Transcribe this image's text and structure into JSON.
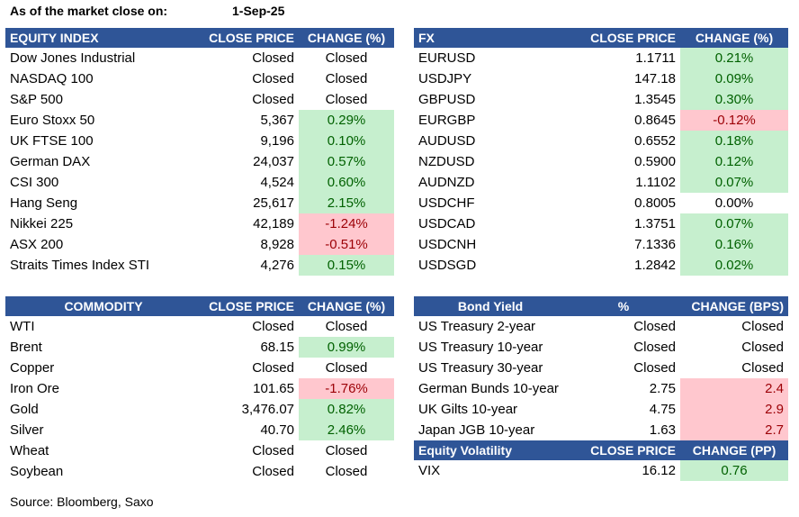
{
  "header": {
    "label": "As of the market close on:",
    "date": "1-Sep-25"
  },
  "equity": {
    "headers": [
      "EQUITY INDEX",
      "CLOSE PRICE",
      "CHANGE (%)"
    ],
    "rows": [
      {
        "name": "Dow Jones Industrial",
        "price": "Closed",
        "change": "Closed",
        "dir": "none"
      },
      {
        "name": "NASDAQ 100",
        "price": "Closed",
        "change": "Closed",
        "dir": "none"
      },
      {
        "name": "S&P 500",
        "price": "Closed",
        "change": "Closed",
        "dir": "none"
      },
      {
        "name": "Euro Stoxx 50",
        "price": "5,367",
        "change": "0.29%",
        "dir": "pos"
      },
      {
        "name": "UK FTSE 100",
        "price": "9,196",
        "change": "0.10%",
        "dir": "pos"
      },
      {
        "name": "German DAX",
        "price": "24,037",
        "change": "0.57%",
        "dir": "pos"
      },
      {
        "name": "CSI 300",
        "price": "4,524",
        "change": "0.60%",
        "dir": "pos"
      },
      {
        "name": "Hang Seng",
        "price": "25,617",
        "change": "2.15%",
        "dir": "pos"
      },
      {
        "name": "Nikkei 225",
        "price": "42,189",
        "change": "-1.24%",
        "dir": "neg"
      },
      {
        "name": "ASX 200",
        "price": "8,928",
        "change": "-0.51%",
        "dir": "neg"
      },
      {
        "name": "Straits Times Index STI",
        "price": "4,276",
        "change": "0.15%",
        "dir": "pos"
      }
    ]
  },
  "fx": {
    "headers": [
      "FX",
      "CLOSE PRICE",
      "CHANGE (%)"
    ],
    "rows": [
      {
        "name": "EURUSD",
        "price": "1.1711",
        "change": "0.21%",
        "dir": "pos"
      },
      {
        "name": "USDJPY",
        "price": "147.18",
        "change": "0.09%",
        "dir": "pos"
      },
      {
        "name": "GBPUSD",
        "price": "1.3545",
        "change": "0.30%",
        "dir": "pos"
      },
      {
        "name": "EURGBP",
        "price": "0.8645",
        "change": "-0.12%",
        "dir": "neg"
      },
      {
        "name": "AUDUSD",
        "price": "0.6552",
        "change": "0.18%",
        "dir": "pos"
      },
      {
        "name": "NZDUSD",
        "price": "0.5900",
        "change": "0.12%",
        "dir": "pos"
      },
      {
        "name": "AUDNZD",
        "price": "1.1102",
        "change": "0.07%",
        "dir": "pos"
      },
      {
        "name": "USDCHF",
        "price": "0.8005",
        "change": "0.00%",
        "dir": "none"
      },
      {
        "name": "USDCAD",
        "price": "1.3751",
        "change": "0.07%",
        "dir": "pos"
      },
      {
        "name": "USDCNH",
        "price": "7.1336",
        "change": "0.16%",
        "dir": "pos"
      },
      {
        "name": "USDSGD",
        "price": "1.2842",
        "change": "0.02%",
        "dir": "pos"
      }
    ]
  },
  "commodity": {
    "headers": [
      "COMMODITY",
      "CLOSE PRICE",
      "CHANGE (%)"
    ],
    "rows": [
      {
        "name": "WTI",
        "price": "Closed",
        "change": "Closed",
        "dir": "none"
      },
      {
        "name": "Brent",
        "price": "68.15",
        "change": "0.99%",
        "dir": "pos"
      },
      {
        "name": "Copper",
        "price": "Closed",
        "change": "Closed",
        "dir": "none"
      },
      {
        "name": "Iron Ore",
        "price": "101.65",
        "change": "-1.76%",
        "dir": "neg"
      },
      {
        "name": "Gold",
        "price": "3,476.07",
        "change": "0.82%",
        "dir": "pos"
      },
      {
        "name": "Silver",
        "price": "40.70",
        "change": "2.46%",
        "dir": "pos"
      },
      {
        "name": "Wheat",
        "price": "Closed",
        "change": "Closed",
        "dir": "none"
      },
      {
        "name": "Soybean",
        "price": "Closed",
        "change": "Closed",
        "dir": "none"
      }
    ]
  },
  "bonds": {
    "headers": [
      "Bond Yield",
      "%",
      "CHANGE (BPS)"
    ],
    "rows": [
      {
        "name": "US Treasury 2-year",
        "price": "Closed",
        "change": "Closed",
        "dir": "none"
      },
      {
        "name": "US Treasury 10-year",
        "price": "Closed",
        "change": "Closed",
        "dir": "none"
      },
      {
        "name": "US Treasury 30-year",
        "price": "Closed",
        "change": "Closed",
        "dir": "none"
      },
      {
        "name": "German Bunds 10-year",
        "price": "2.75",
        "change": "2.4",
        "dir": "neg"
      },
      {
        "name": "UK Gilts 10-year",
        "price": "4.75",
        "change": "2.9",
        "dir": "neg"
      },
      {
        "name": "Japan JGB 10-year",
        "price": "1.63",
        "change": "2.7",
        "dir": "neg"
      }
    ]
  },
  "volatility": {
    "headers": [
      "Equity Volatility",
      "CLOSE PRICE",
      "CHANGE (PP)"
    ],
    "rows": [
      {
        "name": "VIX",
        "price": "16.12",
        "change": "0.76",
        "dir": "pos"
      }
    ]
  },
  "source": "Source: Bloomberg, Saxo",
  "colors": {
    "header_bg": "#2f5597",
    "positive_bg": "#c6efce",
    "negative_bg": "#ffc7ce"
  }
}
